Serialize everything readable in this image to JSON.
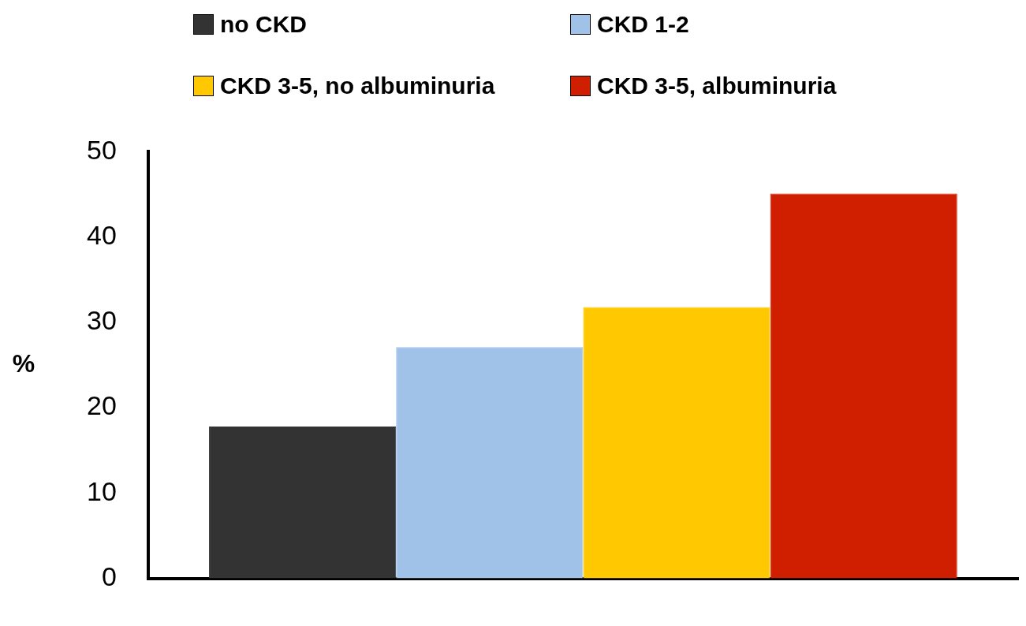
{
  "chart_data": {
    "type": "bar",
    "ylabel": "%",
    "categories": [
      null
    ],
    "series": [
      {
        "name": "no CKD",
        "color": "#333333",
        "values": [
          17.8
        ]
      },
      {
        "name": "CKD 1-2",
        "color": "#a0c2e8",
        "values": [
          27.1
        ]
      },
      {
        "name": "CKD 3-5, no albuminuria",
        "color": "#ffc800",
        "values": [
          31.8
        ]
      },
      {
        "name": "CKD 3-5, albuminuria",
        "color": "#d01e00",
        "values": [
          45.1
        ]
      }
    ],
    "ylim": [
      0,
      50
    ],
    "yticks": [
      0,
      10,
      20,
      30,
      40,
      50
    ],
    "grid": false,
    "legend": "top"
  }
}
